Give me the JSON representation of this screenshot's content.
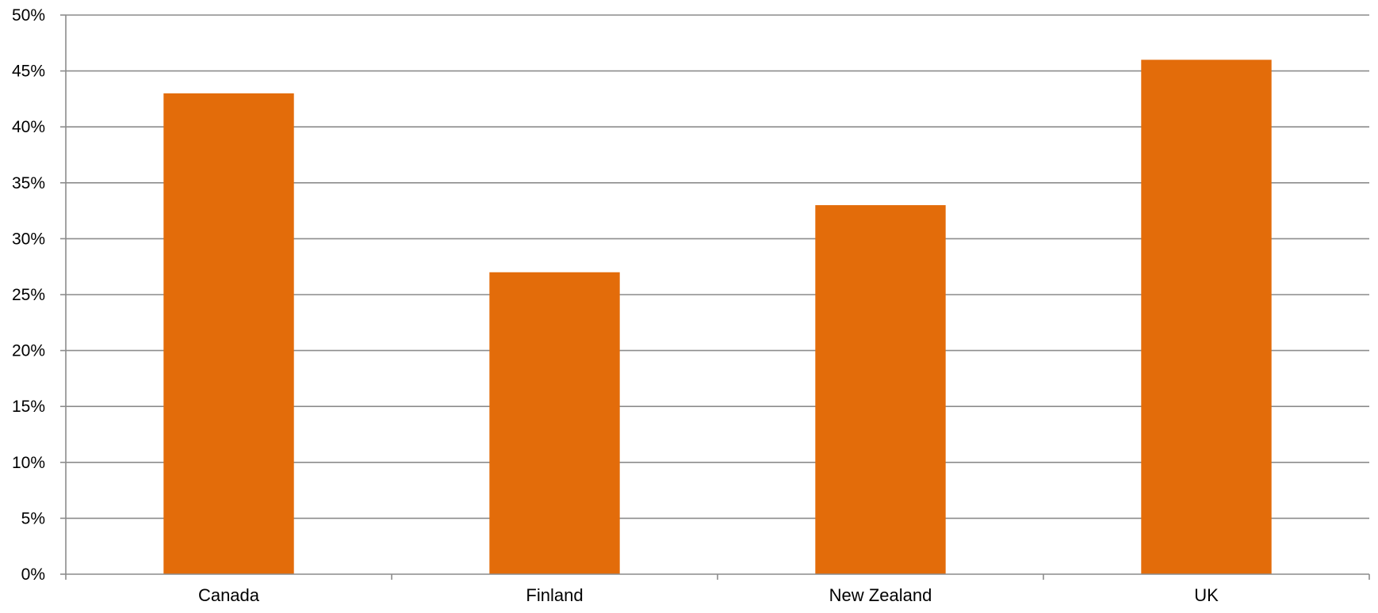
{
  "chart_data": {
    "type": "bar",
    "categories": [
      "Canada",
      "Finland",
      "New Zealand",
      "UK"
    ],
    "values": [
      43,
      27,
      33,
      46
    ],
    "yticks": [
      "0%",
      "5%",
      "10%",
      "15%",
      "20%",
      "25%",
      "30%",
      "35%",
      "40%",
      "45%",
      "50%"
    ],
    "ylim": [
      0,
      50
    ],
    "unit": "%",
    "grid": true,
    "bar_color": "#e36c0a",
    "grid_color": "#8c8c8c"
  }
}
